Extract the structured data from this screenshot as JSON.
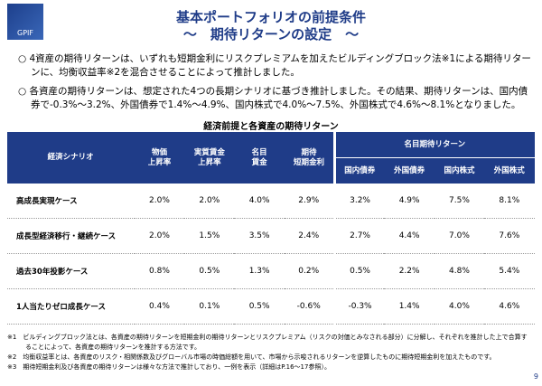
{
  "header": {
    "logo": "GPIF",
    "title": [
      "基本ポートフォリオの前提条件",
      "～　期待リターンの設定　～"
    ]
  },
  "bullets": [
    "4資産の期待リターンは、いずれも短期金利にリスクプレミアムを加えたビルディングブロック法※1による期待リターンに、均衡収益率※2を混合させることによって推計しました。",
    "各資産の期待リターンは、想定された4つの長期シナリオに基づき推計しました。その結果、期待リターンは、国内債券で-0.3%～3.2%、外国債券で1.4%～4.9%、国内株式で4.0%～7.5%、外国株式で4.6%～8.1%となりました。"
  ],
  "table": {
    "caption": "経済前提と各資産の期待リターン",
    "columns": [
      [
        "経済シナリオ"
      ],
      [
        "物価",
        "上昇率"
      ],
      [
        "実質賃金",
        "上昇率"
      ],
      [
        "名目",
        "賃金"
      ],
      [
        "期待",
        "短期金利"
      ]
    ],
    "group_header": "名目期待リターン",
    "subcolumns": [
      "国内債券",
      "外国債券",
      "国内株式",
      "外国株式"
    ],
    "rows": [
      [
        "高成長実現ケース",
        "2.0%",
        "2.0%",
        "4.0%",
        "2.9%",
        "3.2%",
        "4.9%",
        "7.5%",
        "8.1%"
      ],
      [
        "成長型経済移行・継続ケース",
        "2.0%",
        "1.5%",
        "3.5%",
        "2.4%",
        "2.7%",
        "4.4%",
        "7.0%",
        "7.6%"
      ],
      [
        "過去30年投影ケース",
        "0.8%",
        "0.5%",
        "1.3%",
        "0.2%",
        "0.5%",
        "2.2%",
        "4.8%",
        "5.4%"
      ],
      [
        "1人当たりゼロ成長ケース",
        "0.4%",
        "0.1%",
        "0.5%",
        "-0.6%",
        "-0.3%",
        "1.4%",
        "4.0%",
        "4.6%"
      ]
    ]
  },
  "footnotes": [
    "※1　ビルディングブロック法とは、各資産の期待リターンを短期金利の期待リターンとリスクプレミアム（リスクの対価とみなされる部分）に分解し、それぞれを推計した上で合算することによって、各資産の期待リターンを推計する方法です。",
    "※2　均衡収益率とは、各資産のリスク・相関係数及びグローバル市場の時価総額を用いて、市場から示唆されるリターンを逆算したものに期待短期金利を加えたものです。",
    "※3　期待短期金利及び各資産の期待リターンは様々な方法で推計しており、一例を表示（詳細はP.16～17参照）。"
  ],
  "page_number": "9"
}
